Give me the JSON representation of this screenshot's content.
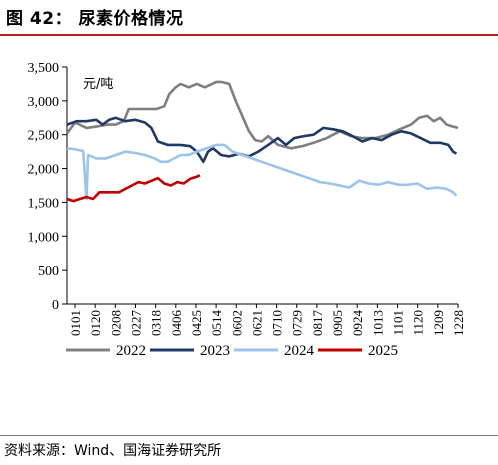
{
  "header": {
    "title": "图 42：  尿素价格情况"
  },
  "footer": {
    "source": "资料来源：Wind、国海证券研究所"
  },
  "chart_data": {
    "type": "line",
    "unit": "元/吨",
    "ylim": [
      0,
      3500
    ],
    "yticks": [
      "0",
      "500",
      "1,000",
      "1,500",
      "2,000",
      "2,500",
      "3,000",
      "3,500"
    ],
    "xticks": [
      "0101",
      "0120",
      "0208",
      "0227",
      "0318",
      "0406",
      "0425",
      "0514",
      "0602",
      "0621",
      "0710",
      "0729",
      "0817",
      "0905",
      "0924",
      "1013",
      "1101",
      "1120",
      "1209",
      "1228"
    ],
    "legend_position": "bottom",
    "series": [
      {
        "name": "2022",
        "color": "#7f7f7f",
        "values": [
          [
            0,
            2520
          ],
          [
            5,
            2680
          ],
          [
            12,
            2600
          ],
          [
            18,
            2620
          ],
          [
            25,
            2650
          ],
          [
            30,
            2650
          ],
          [
            35,
            2700
          ],
          [
            38,
            2880
          ],
          [
            42,
            2880
          ],
          [
            47,
            2880
          ],
          [
            55,
            2880
          ],
          [
            60,
            2920
          ],
          [
            63,
            3100
          ],
          [
            67,
            3200
          ],
          [
            70,
            3250
          ],
          [
            75,
            3200
          ],
          [
            80,
            3250
          ],
          [
            85,
            3200
          ],
          [
            92,
            3280
          ],
          [
            95,
            3280
          ],
          [
            100,
            3250
          ],
          [
            104,
            3000
          ],
          [
            108,
            2780
          ],
          [
            112,
            2560
          ],
          [
            116,
            2420
          ],
          [
            120,
            2400
          ],
          [
            124,
            2480
          ],
          [
            130,
            2350
          ],
          [
            138,
            2300
          ],
          [
            145,
            2330
          ],
          [
            152,
            2380
          ],
          [
            160,
            2450
          ],
          [
            168,
            2550
          ],
          [
            175,
            2480
          ],
          [
            182,
            2450
          ],
          [
            190,
            2450
          ],
          [
            198,
            2500
          ],
          [
            205,
            2580
          ],
          [
            212,
            2650
          ],
          [
            217,
            2750
          ],
          [
            222,
            2780
          ],
          [
            226,
            2700
          ],
          [
            230,
            2750
          ],
          [
            234,
            2650
          ],
          [
            238,
            2620
          ],
          [
            241,
            2600
          ]
        ]
      },
      {
        "name": "2023",
        "color": "#1f3864",
        "values": [
          [
            0,
            2650
          ],
          [
            6,
            2700
          ],
          [
            12,
            2700
          ],
          [
            18,
            2720
          ],
          [
            22,
            2650
          ],
          [
            26,
            2720
          ],
          [
            30,
            2750
          ],
          [
            36,
            2700
          ],
          [
            42,
            2720
          ],
          [
            48,
            2680
          ],
          [
            52,
            2600
          ],
          [
            56,
            2400
          ],
          [
            62,
            2350
          ],
          [
            70,
            2350
          ],
          [
            76,
            2330
          ],
          [
            80,
            2250
          ],
          [
            84,
            2100
          ],
          [
            87,
            2250
          ],
          [
            90,
            2300
          ],
          [
            95,
            2200
          ],
          [
            100,
            2180
          ],
          [
            106,
            2220
          ],
          [
            112,
            2180
          ],
          [
            118,
            2250
          ],
          [
            124,
            2350
          ],
          [
            130,
            2450
          ],
          [
            135,
            2350
          ],
          [
            140,
            2450
          ],
          [
            146,
            2480
          ],
          [
            152,
            2500
          ],
          [
            158,
            2600
          ],
          [
            164,
            2580
          ],
          [
            170,
            2550
          ],
          [
            176,
            2480
          ],
          [
            182,
            2400
          ],
          [
            188,
            2450
          ],
          [
            194,
            2420
          ],
          [
            200,
            2500
          ],
          [
            206,
            2550
          ],
          [
            212,
            2520
          ],
          [
            218,
            2450
          ],
          [
            224,
            2380
          ],
          [
            230,
            2380
          ],
          [
            235,
            2350
          ],
          [
            238,
            2250
          ],
          [
            240,
            2220
          ]
        ]
      },
      {
        "name": "2024",
        "color": "#9dc3e6",
        "values": [
          [
            0,
            2300
          ],
          [
            6,
            2280
          ],
          [
            10,
            2260
          ],
          [
            12,
            1550
          ],
          [
            13,
            2200
          ],
          [
            18,
            2150
          ],
          [
            24,
            2150
          ],
          [
            30,
            2200
          ],
          [
            36,
            2250
          ],
          [
            42,
            2230
          ],
          [
            48,
            2200
          ],
          [
            54,
            2150
          ],
          [
            58,
            2100
          ],
          [
            62,
            2100
          ],
          [
            66,
            2150
          ],
          [
            70,
            2200
          ],
          [
            75,
            2200
          ],
          [
            80,
            2250
          ],
          [
            86,
            2300
          ],
          [
            92,
            2350
          ],
          [
            97,
            2350
          ],
          [
            102,
            2250
          ],
          [
            108,
            2200
          ],
          [
            114,
            2150
          ],
          [
            120,
            2100
          ],
          [
            126,
            2050
          ],
          [
            132,
            2000
          ],
          [
            138,
            1950
          ],
          [
            144,
            1900
          ],
          [
            150,
            1850
          ],
          [
            156,
            1800
          ],
          [
            162,
            1780
          ],
          [
            168,
            1750
          ],
          [
            174,
            1720
          ],
          [
            180,
            1820
          ],
          [
            186,
            1780
          ],
          [
            192,
            1760
          ],
          [
            198,
            1800
          ],
          [
            204,
            1760
          ],
          [
            210,
            1760
          ],
          [
            216,
            1780
          ],
          [
            222,
            1700
          ],
          [
            228,
            1720
          ],
          [
            234,
            1700
          ],
          [
            238,
            1650
          ],
          [
            240,
            1600
          ]
        ]
      },
      {
        "name": "2025",
        "color": "#c00000",
        "values": [
          [
            0,
            1550
          ],
          [
            4,
            1520
          ],
          [
            8,
            1550
          ],
          [
            12,
            1580
          ],
          [
            16,
            1550
          ],
          [
            20,
            1650
          ],
          [
            26,
            1650
          ],
          [
            32,
            1650
          ],
          [
            36,
            1700
          ],
          [
            40,
            1750
          ],
          [
            44,
            1800
          ],
          [
            48,
            1780
          ],
          [
            52,
            1820
          ],
          [
            56,
            1860
          ],
          [
            60,
            1780
          ],
          [
            64,
            1750
          ],
          [
            68,
            1800
          ],
          [
            72,
            1780
          ],
          [
            76,
            1850
          ],
          [
            80,
            1880
          ],
          [
            82,
            1900
          ]
        ]
      }
    ]
  }
}
